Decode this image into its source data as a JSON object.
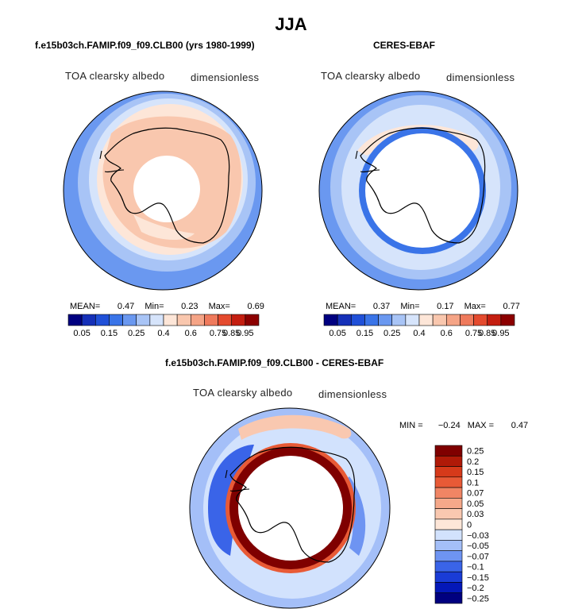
{
  "figure": {
    "title": "JJA",
    "difference_title": "f.e15b03ch.FAMIP.f09_f09.CLB00 - CERES-EBAF"
  },
  "colors": {
    "abs_palette": [
      "#000080",
      "#1530b8",
      "#2050d8",
      "#3a74e8",
      "#6a98f0",
      "#a8c4f6",
      "#d6e4fb",
      "#fde6d8",
      "#f9c7ae",
      "#f5a486",
      "#ef7a5c",
      "#e44a2e",
      "#c41e10",
      "#8c0000"
    ],
    "diff_palette": [
      "#00007f",
      "#0418b8",
      "#1a3cd6",
      "#3a64e8",
      "#6e94f2",
      "#a4bff8",
      "#d2e2fd",
      "#fde6d8",
      "#f9c8b0",
      "#f5a88a",
      "#f08564",
      "#e85a36",
      "#d63a1a",
      "#b01a08",
      "#7f0000"
    ]
  },
  "chart_data": [
    {
      "type": "heatmap",
      "title": "f.e15b03ch.FAMIP.f09_f09.CLB00 (yrs 1980-1999)",
      "variable": "TOA clearsky albedo",
      "units": "dimensionless",
      "mean_label": "MEAN=",
      "mean": "0.47",
      "min_label": "Min=",
      "min": "0.23",
      "max_label": "Max=",
      "max": "0.69",
      "levels": [
        "0.05",
        "0.15",
        "0.25",
        "0.4",
        "0.6",
        "0.75",
        "0.85",
        "0.95"
      ]
    },
    {
      "type": "heatmap",
      "title": "CERES-EBAF",
      "variable": "TOA clearsky albedo",
      "units": "dimensionless",
      "mean_label": "MEAN=",
      "mean": "0.37",
      "min_label": "Min=",
      "min": "0.17",
      "max_label": "Max=",
      "max": "0.77",
      "levels": [
        "0.05",
        "0.15",
        "0.25",
        "0.4",
        "0.6",
        "0.75",
        "0.85",
        "0.95"
      ]
    },
    {
      "type": "heatmap",
      "variable": "TOA clearsky albedo",
      "units": "dimensionless",
      "min_label": "MIN =",
      "min": "−0.24",
      "max_label": "MAX =",
      "max": "0.47",
      "levels": [
        "0.25",
        "0.2",
        "0.15",
        "0.1",
        "0.07",
        "0.05",
        "0.03",
        "0",
        "−0.03",
        "−0.05",
        "−0.07",
        "−0.1",
        "−0.15",
        "−0.2",
        "−0.25"
      ]
    }
  ]
}
